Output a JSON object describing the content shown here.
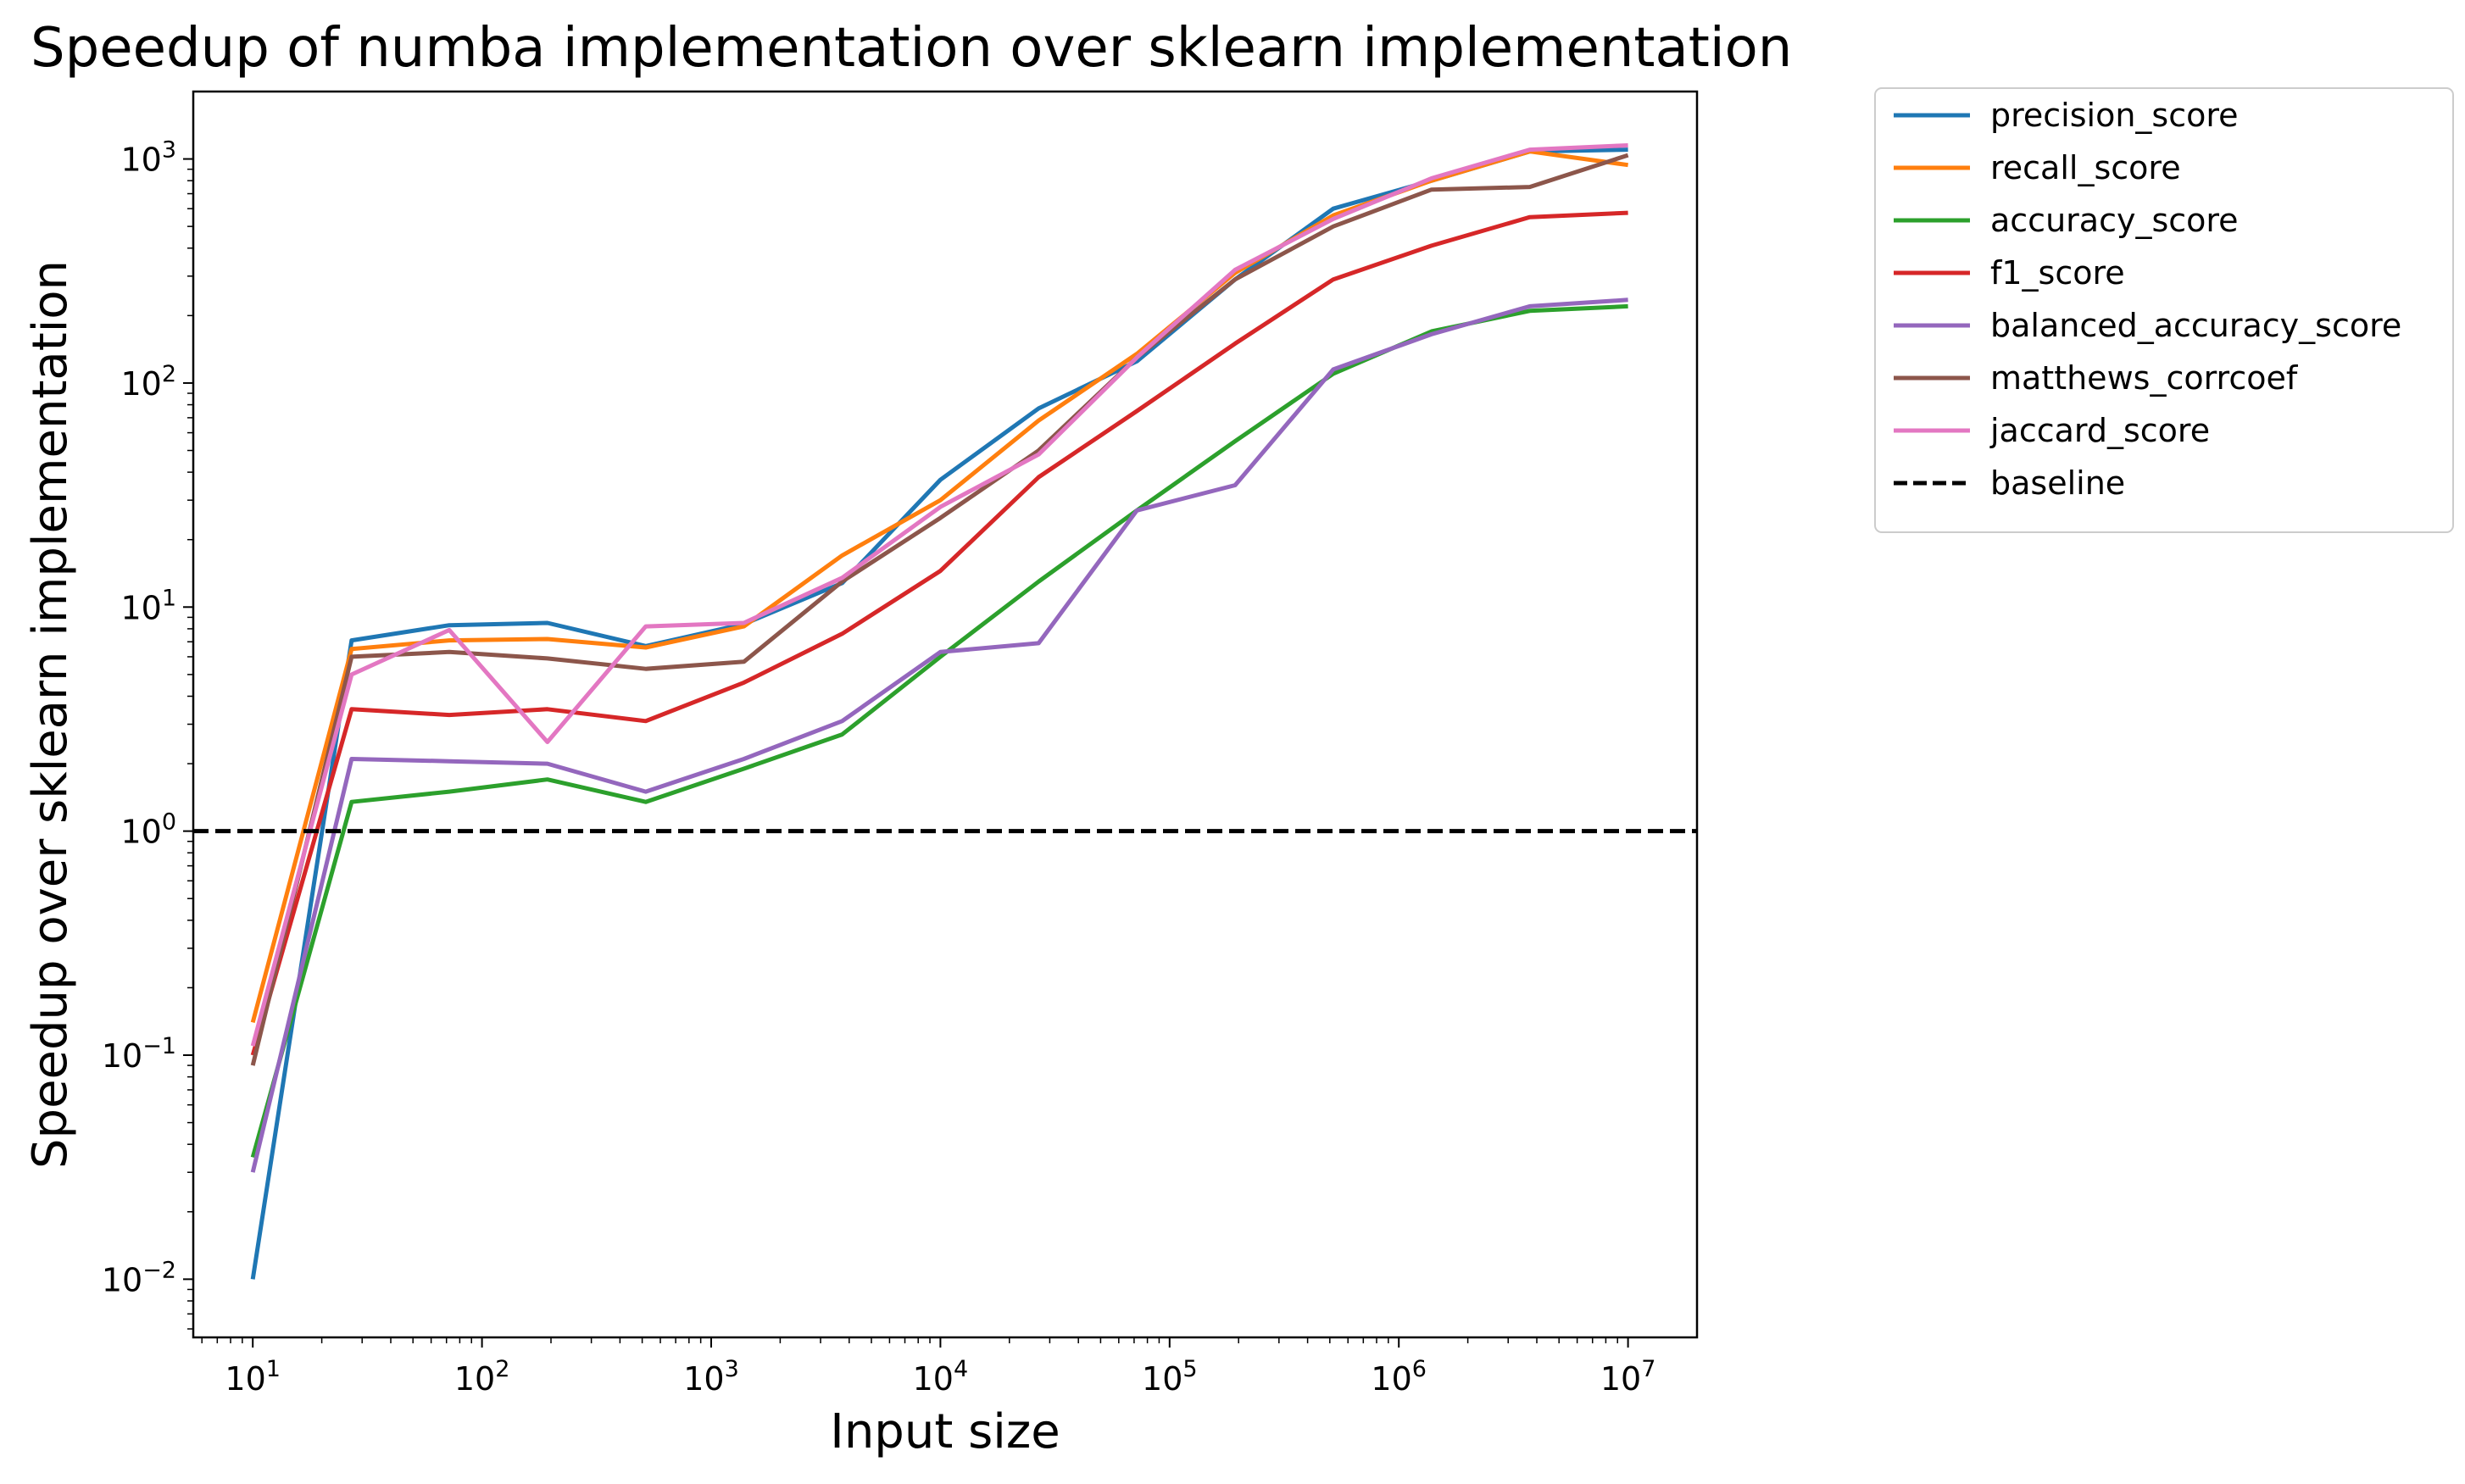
{
  "chart_data": {
    "type": "line",
    "title": "Speedup of numba implementation over sklearn implementation",
    "xlabel": "Input size",
    "ylabel": "Speedup over sklearn implementation",
    "xscale": "log",
    "yscale": "log",
    "xlim": [
      5.5,
      20000000
    ],
    "ylim": [
      0.0055,
      2000
    ],
    "x_ticks": [
      10,
      100,
      1000,
      10000,
      100000,
      1000000,
      10000000
    ],
    "x_tick_labels": [
      {
        "base": "10",
        "exp": "1"
      },
      {
        "base": "10",
        "exp": "2"
      },
      {
        "base": "10",
        "exp": "3"
      },
      {
        "base": "10",
        "exp": "4"
      },
      {
        "base": "10",
        "exp": "5"
      },
      {
        "base": "10",
        "exp": "6"
      },
      {
        "base": "10",
        "exp": "7"
      }
    ],
    "y_ticks": [
      0.01,
      0.1,
      1,
      10,
      100,
      1000
    ],
    "y_tick_labels": [
      {
        "base": "10",
        "exp": "−2"
      },
      {
        "base": "10",
        "exp": "−1"
      },
      {
        "base": "10",
        "exp": "0"
      },
      {
        "base": "10",
        "exp": "1"
      },
      {
        "base": "10",
        "exp": "2"
      },
      {
        "base": "10",
        "exp": "3"
      }
    ],
    "grid": false,
    "legend_position": "outside-top-right",
    "x": [
      10,
      27,
      72,
      193,
      518,
      1389,
      3728,
      10000,
      26827,
      71969,
      193070,
      517947,
      1389495,
      3727594,
      10000000
    ],
    "series": [
      {
        "name": "precision_score",
        "color": "#1f77b4",
        "style": "solid",
        "values": [
          0.01,
          7.1,
          8.3,
          8.5,
          6.7,
          8.4,
          12.8,
          37,
          77,
          125,
          290,
          600,
          800,
          1080,
          1100
        ]
      },
      {
        "name": "recall_score",
        "color": "#ff7f0e",
        "style": "solid",
        "values": [
          0.14,
          6.5,
          7.1,
          7.2,
          6.6,
          8.2,
          17,
          30,
          68,
          135,
          310,
          560,
          800,
          1080,
          940
        ]
      },
      {
        "name": "accuracy_score",
        "color": "#2ca02c",
        "style": "solid",
        "values": [
          0.035,
          1.35,
          1.5,
          1.7,
          1.35,
          1.9,
          2.7,
          6,
          13,
          27,
          55,
          110,
          170,
          210,
          220
        ]
      },
      {
        "name": "f1_score",
        "color": "#d62728",
        "style": "solid",
        "values": [
          0.1,
          3.5,
          3.3,
          3.5,
          3.1,
          4.6,
          7.6,
          14.5,
          38,
          75,
          150,
          290,
          410,
          550,
          575
        ]
      },
      {
        "name": "balanced_accuracy_score",
        "color": "#9467bd",
        "style": "solid",
        "values": [
          0.03,
          2.1,
          2.05,
          2.0,
          1.5,
          2.1,
          3.1,
          6.3,
          6.9,
          27,
          35,
          115,
          165,
          220,
          235
        ]
      },
      {
        "name": "matthews_corrcoef",
        "color": "#8c564b",
        "style": "solid",
        "values": [
          0.09,
          6.0,
          6.3,
          5.9,
          5.3,
          5.7,
          13,
          25,
          50,
          130,
          290,
          500,
          730,
          750,
          1040
        ]
      },
      {
        "name": "jaccard_score",
        "color": "#e377c2",
        "style": "solid",
        "values": [
          0.11,
          5.0,
          7.9,
          2.5,
          8.2,
          8.5,
          13.5,
          28,
          48,
          130,
          320,
          540,
          820,
          1100,
          1150
        ]
      },
      {
        "name": "baseline",
        "color": "#000000",
        "style": "dashed",
        "values": [
          1,
          1,
          1,
          1,
          1,
          1,
          1,
          1,
          1,
          1,
          1,
          1,
          1,
          1,
          1
        ]
      }
    ]
  }
}
